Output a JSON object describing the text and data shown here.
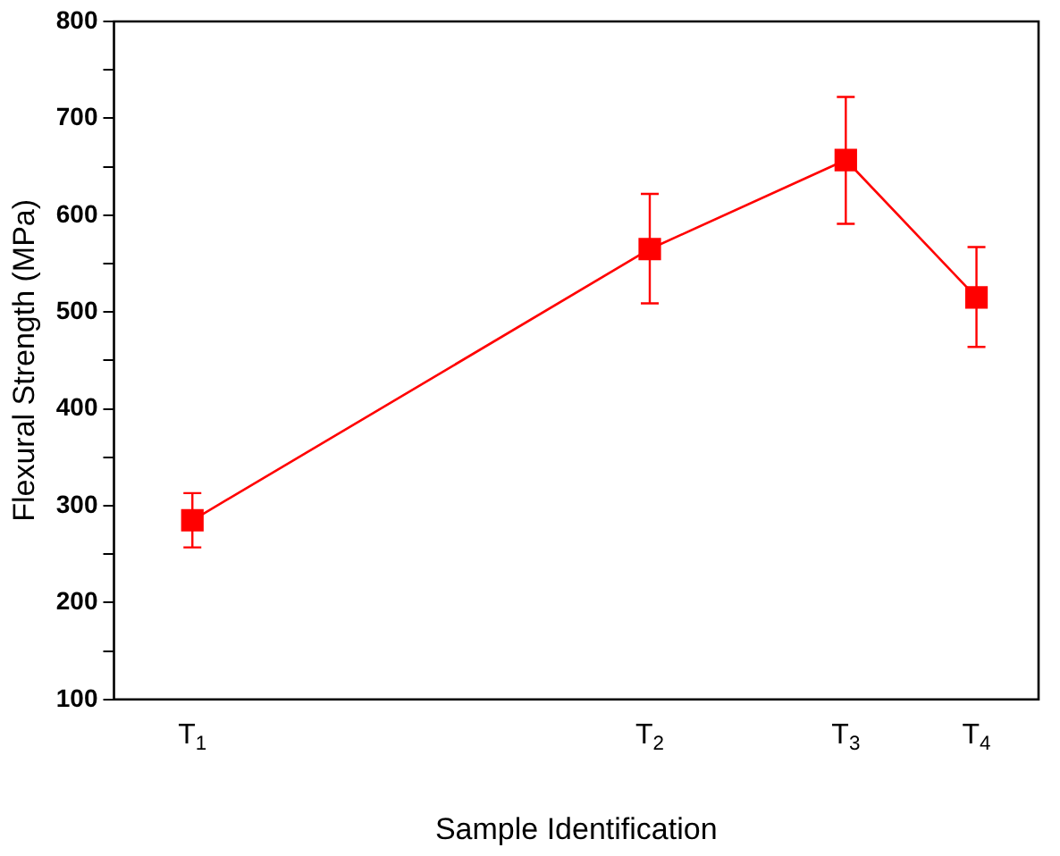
{
  "chart_data": {
    "type": "line",
    "xlabel": "Sample Identification",
    "ylabel": "Flexural Strength (MPa)",
    "categories": [
      "T$_{1}$",
      null,
      null,
      null,
      null,
      null,
      null,
      "T$_{2}$",
      null,
      null,
      "T$_{3}$",
      null,
      "T$_{4}$"
    ],
    "series": [
      {
        "color": "#ff0000",
        "values": [
          285,
          null,
          null,
          null,
          null,
          null,
          null,
          565,
          null,
          null,
          657,
          null,
          515
        ],
        "errors": [
          [
            257,
            313
          ],
          null,
          null,
          null,
          null,
          null,
          null,
          [
            509,
            622
          ],
          null,
          null,
          [
            591,
            722
          ],
          null,
          [
            464,
            567
          ]
        ]
      }
    ],
    "ylim": [
      100,
      800
    ],
    "yticks": [
      100,
      {
        "value": 150,
        "label": null
      },
      200,
      {
        "value": 250,
        "label": null
      },
      300,
      {
        "value": 350,
        "label": null
      },
      400,
      {
        "value": 450,
        "label": null
      },
      500,
      {
        "value": 550,
        "label": null
      },
      600,
      {
        "value": 650,
        "label": null
      },
      700,
      {
        "value": 750,
        "label": null
      },
      800
    ],
    "grid": false,
    "legend": false,
    "marker": "square",
    "line_style": "solid"
  }
}
